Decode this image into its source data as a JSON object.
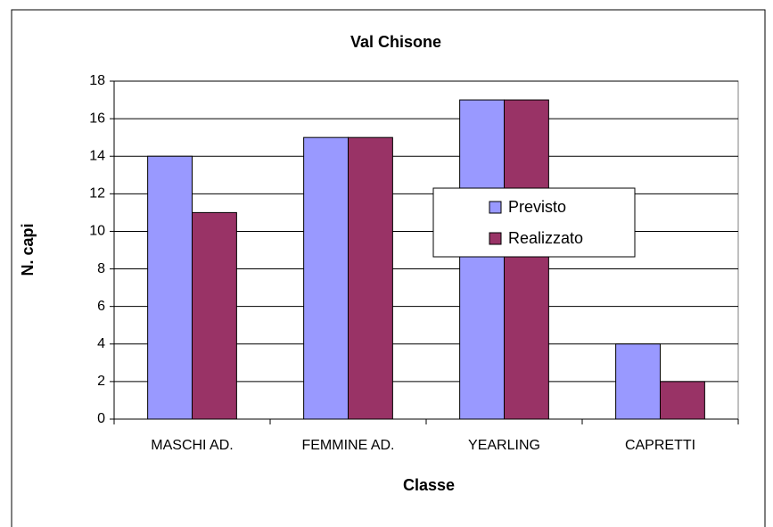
{
  "chart_data": {
    "type": "bar",
    "title": "Val Chisone",
    "x_label": "Classe",
    "y_label": "N. capi",
    "categories": [
      "MASCHI AD.",
      "FEMMINE AD.",
      "YEARLING",
      "CAPRETTI"
    ],
    "series": [
      {
        "name": "Previsto",
        "color": "#9999ff",
        "values": [
          14,
          15,
          17,
          4
        ]
      },
      {
        "name": "Realizzato",
        "color": "#993366",
        "values": [
          11,
          15,
          17,
          2
        ]
      }
    ],
    "ylim": [
      0,
      18
    ],
    "yticks": [
      0,
      2,
      4,
      6,
      8,
      10,
      12,
      14,
      16,
      18
    ],
    "grid": true,
    "legend": "right"
  }
}
